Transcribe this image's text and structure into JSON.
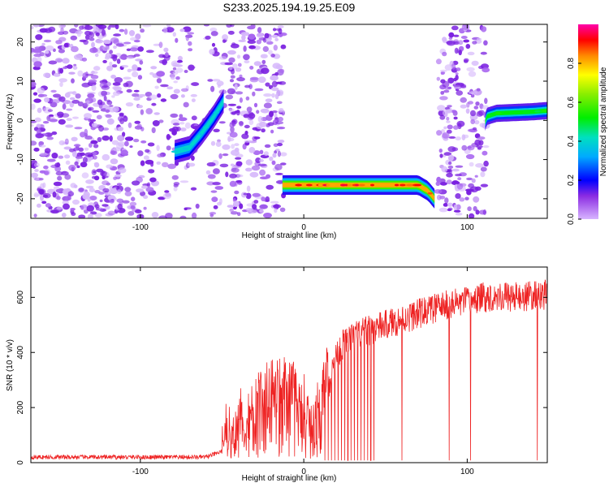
{
  "title": "S233.2025.194.19.25.E09",
  "colors": {
    "line": "#ee2222",
    "axis": "#000000"
  },
  "chart_data": [
    {
      "type": "heatmap",
      "xlabel": "Height of straight line (km)",
      "ylabel": "Frequency (Hz)",
      "xlim": [
        -167,
        149
      ],
      "ylim": [
        -25,
        24.5
      ],
      "xticks": [
        -100,
        0,
        100
      ],
      "yticks": [
        -20,
        -10,
        0,
        10,
        20
      ],
      "colorbar": {
        "label": "Normalized spectral amplitude",
        "range": [
          0,
          1
        ],
        "ticks": [
          0.0,
          0.2,
          0.4,
          0.6,
          0.8
        ],
        "tick_labels": [
          "0.0",
          "0.2",
          "0.4",
          "0.6",
          "0.8"
        ]
      },
      "noise_regions": [
        {
          "x": [
            -167,
            -110
          ],
          "density": 1.0
        },
        {
          "x": [
            -110,
            -65
          ],
          "density": 0.55
        },
        {
          "x": [
            -60,
            -45
          ],
          "density": 0.45
        },
        {
          "x": [
            -45,
            -12
          ],
          "density": 0.9
        },
        {
          "x": [
            82,
            112
          ],
          "density": 0.85
        }
      ],
      "features": [
        {
          "name": "band1",
          "points": [
            [
              -79,
              -8
            ],
            [
              -70,
              -7
            ],
            [
              -62,
              -3
            ],
            [
              -55,
              1
            ],
            [
              -49,
              5
            ]
          ],
          "amplitude": 0.4,
          "width_hz": 3
        },
        {
          "name": "band2",
          "points": [
            [
              -13,
              -16.5
            ],
            [
              70,
              -16.5
            ],
            [
              76,
              -18
            ],
            [
              80,
              -20
            ]
          ],
          "amplitude": 0.95,
          "width_hz": 2.5
        },
        {
          "name": "band3",
          "points": [
            [
              111,
              -0.5
            ],
            [
              112,
              1
            ],
            [
              118,
              1.8
            ],
            [
              140,
              2.2
            ],
            [
              149,
              2.5
            ]
          ],
          "amplitude": 0.55,
          "width_hz": 2.2
        }
      ]
    },
    {
      "type": "line",
      "xlabel": "Height of straight line (km)",
      "ylabel": "SNR (10 * v/v)",
      "xlim": [
        -167,
        149
      ],
      "ylim": [
        0,
        710
      ],
      "xticks": [
        -100,
        0,
        100
      ],
      "yticks": [
        0,
        200,
        400,
        600
      ],
      "trend": [
        [
          -167,
          20
        ],
        [
          -60,
          20
        ],
        [
          -50,
          40
        ],
        [
          -40,
          120
        ],
        [
          -30,
          170
        ],
        [
          -20,
          200
        ],
        [
          -10,
          220
        ],
        [
          0,
          150
        ],
        [
          5,
          120
        ],
        [
          10,
          150
        ],
        [
          15,
          280
        ],
        [
          20,
          390
        ],
        [
          25,
          440
        ],
        [
          35,
          470
        ],
        [
          50,
          500
        ],
        [
          60,
          520
        ],
        [
          70,
          540
        ],
        [
          80,
          560
        ],
        [
          90,
          575
        ],
        [
          100,
          585
        ],
        [
          110,
          600
        ],
        [
          120,
          605
        ],
        [
          130,
          600
        ],
        [
          140,
          605
        ],
        [
          149,
          610
        ]
      ],
      "dropouts": [
        13,
        15,
        17,
        19,
        21,
        23,
        25,
        27,
        29,
        31,
        33,
        35,
        37,
        39,
        41,
        43,
        60,
        89,
        102,
        143
      ]
    }
  ]
}
